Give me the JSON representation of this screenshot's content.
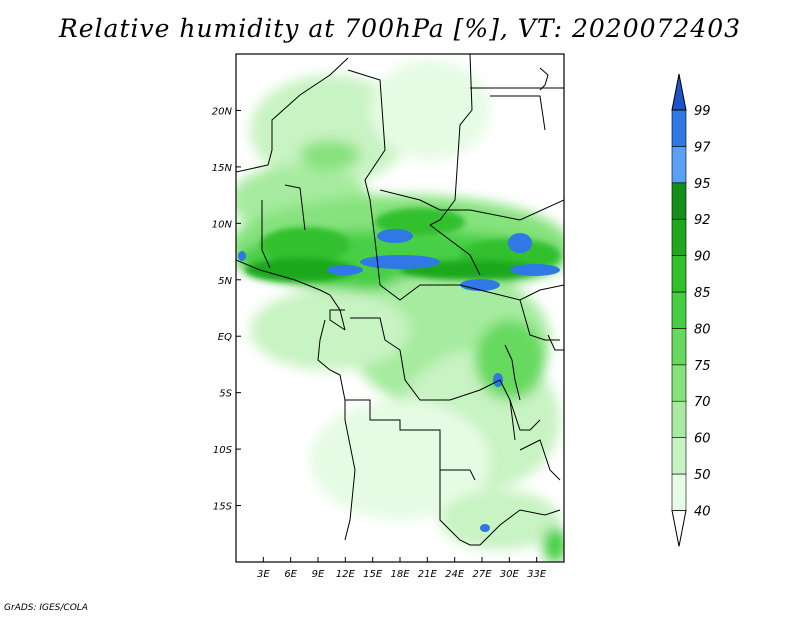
{
  "title": "Relative humidity at 700hPa [%], VT: 2020072403",
  "credit": "GrADS: IGES/COLA",
  "map": {
    "lon_range": [
      0,
      36
    ],
    "lat_range": [
      -20,
      25
    ],
    "lon_ticks": [
      "3E",
      "6E",
      "9E",
      "12E",
      "15E",
      "18E",
      "21E",
      "24E",
      "27E",
      "30E",
      "33E"
    ],
    "lat_ticks": [
      "20N",
      "15N",
      "10N",
      "5N",
      "EQ",
      "5S",
      "10S",
      "15S"
    ]
  },
  "colorbar": {
    "levels": [
      "40",
      "50",
      "60",
      "70",
      "75",
      "80",
      "85",
      "90",
      "92",
      "95",
      "97",
      "99"
    ],
    "colors": [
      "#ffffff",
      "#e6fbe4",
      "#c8f3c2",
      "#a6eb9f",
      "#86e27d",
      "#66d95e",
      "#47cf44",
      "#31c02e",
      "#1fa81d",
      "#14901a",
      "#5aa0f5",
      "#2f78e6",
      "#1d55c8"
    ]
  }
}
